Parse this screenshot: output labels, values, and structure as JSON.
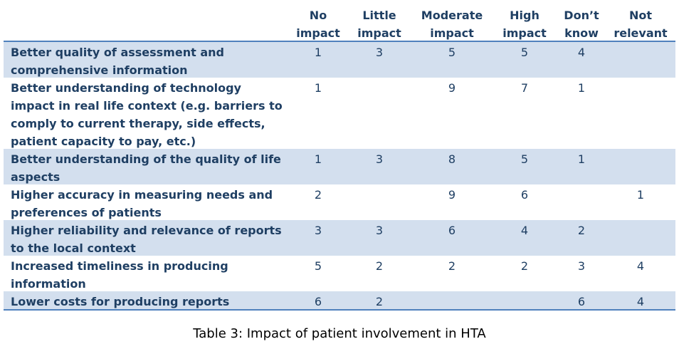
{
  "table": {
    "headers": [
      {
        "line1": "No",
        "line2": "impact"
      },
      {
        "line1": "Little",
        "line2": "impact"
      },
      {
        "line1": "Moderate",
        "line2": "impact"
      },
      {
        "line1": "High",
        "line2": "impact"
      },
      {
        "line1": "Don’t",
        "line2": "know"
      },
      {
        "line1": "Not",
        "line2": "relevant"
      }
    ],
    "rows": [
      {
        "label": "Better quality of assessment and comprehensive information",
        "values": [
          "1",
          "3",
          "5",
          "5",
          "4",
          ""
        ]
      },
      {
        "label": "Better understanding of technology impact in real life context (e.g. barriers to comply to current therapy, side effects, patient capacity to pay, etc.)",
        "values": [
          "1",
          "",
          "9",
          "7",
          "1",
          ""
        ]
      },
      {
        "label": "Better understanding of the quality of life aspects",
        "values": [
          "1",
          "3",
          "8",
          "5",
          "1",
          ""
        ]
      },
      {
        "label": "Higher accuracy in measuring needs and preferences of patients",
        "values": [
          "2",
          "",
          "9",
          "6",
          "",
          "1"
        ]
      },
      {
        "label": "Higher reliability and relevance of reports to the local context",
        "values": [
          "3",
          "3",
          "6",
          "4",
          "2",
          ""
        ]
      },
      {
        "label": "Increased timeliness in producing information",
        "values": [
          "5",
          "2",
          "2",
          "2",
          "3",
          "4"
        ]
      },
      {
        "label": "Lower costs for producing reports",
        "values": [
          "6",
          "2",
          "",
          "",
          "6",
          "4"
        ]
      }
    ]
  },
  "caption": "Table 3: Impact of patient involvement in HTA",
  "colors": {
    "text": "#1f3f63",
    "shade": "#d3dfee",
    "rule": "#4f81bd"
  }
}
